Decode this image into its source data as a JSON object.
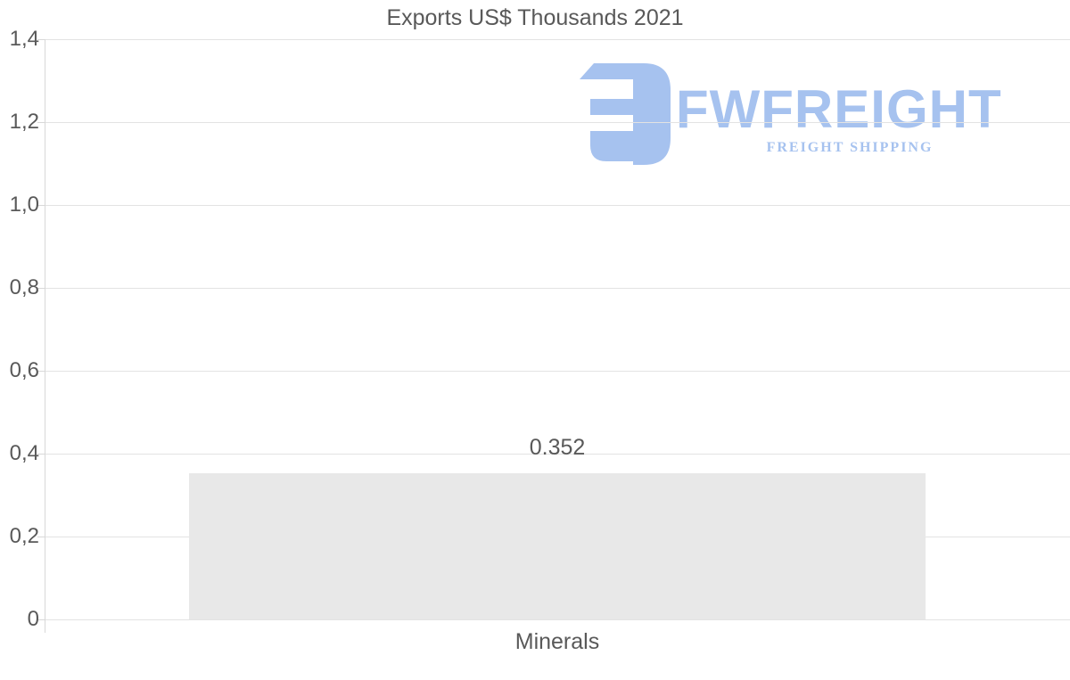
{
  "chart_data": {
    "type": "bar",
    "title": "Exports US$ Thousands 2021",
    "categories": [
      "Minerals"
    ],
    "values": [
      0.352
    ],
    "value_labels": [
      "0.352"
    ],
    "xlabel": "",
    "ylabel": "",
    "ylim": [
      0,
      1.4
    ],
    "ytick_interval": 0.2,
    "ytick_labels": [
      "1,4",
      "1,2",
      "1,0",
      "0,8",
      "0,6",
      "0,4",
      "0,2",
      "0"
    ],
    "grid": true,
    "legend": false,
    "decimal_separator_axis": "comma",
    "decimal_separator_label": "dot"
  },
  "watermark": {
    "brand": "FWFREIGHT",
    "tagline": "FREIGHT SHIPPING"
  },
  "colors": {
    "text": "#595959",
    "gridline": "#e3e3e3",
    "axis_line": "#d8d8d8",
    "bar_fill": "#e8e8e8",
    "logo_blue": "#a6c2ef"
  }
}
